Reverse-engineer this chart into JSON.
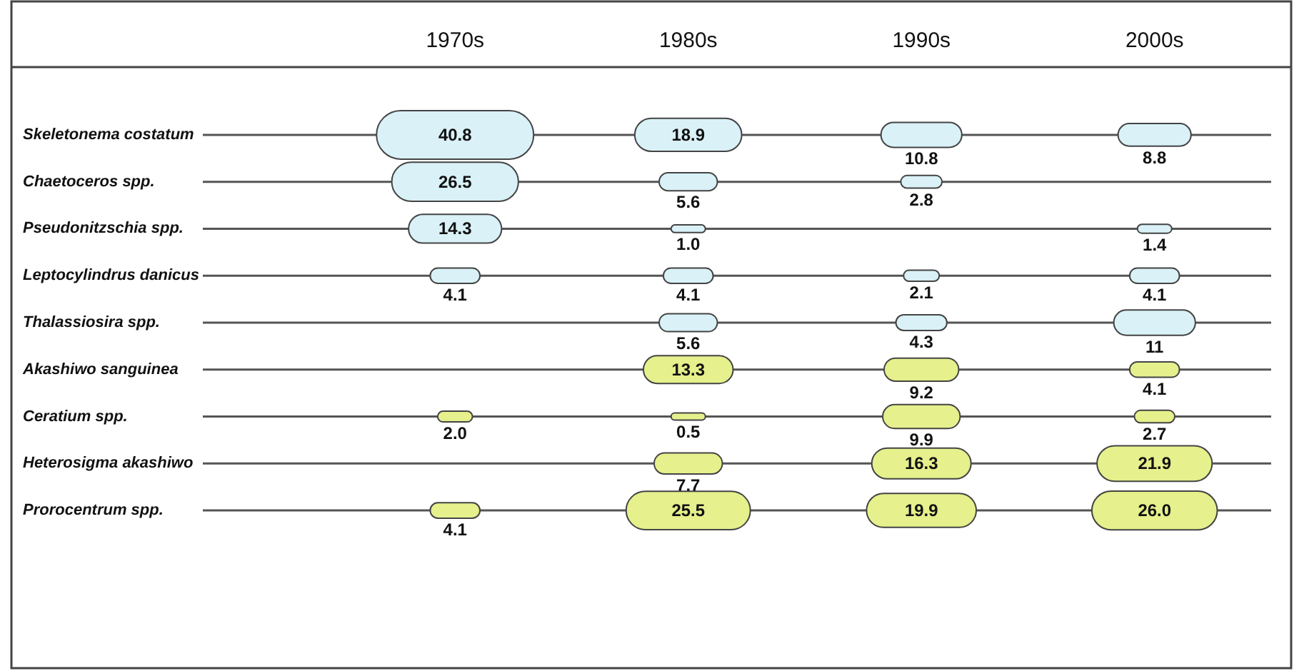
{
  "chart_data": {
    "type": "heatmap",
    "categories": [
      "1970s",
      "1980s",
      "1990s",
      "2000s"
    ],
    "y_categories": [
      "Skeletonema costatum",
      "Chaetoceros spp.",
      "Pseudonitzschia spp.",
      "Leptocylindrus danicus",
      "Thalassiosira spp.",
      "Akashiwo sanguinea",
      "Ceratium spp.",
      "Heterosigma akashiwo",
      "Prorocentrum spp."
    ],
    "cells": [
      [
        40.8,
        18.9,
        10.8,
        8.8
      ],
      [
        26.5,
        5.6,
        2.8,
        null
      ],
      [
        14.3,
        1.0,
        null,
        1.4
      ],
      [
        4.1,
        4.1,
        2.1,
        4.1
      ],
      [
        null,
        5.6,
        4.3,
        11
      ],
      [
        null,
        13.3,
        9.2,
        4.1
      ],
      [
        2.0,
        0.5,
        9.9,
        2.7
      ],
      [
        null,
        7.7,
        16.3,
        21.9
      ],
      [
        4.1,
        25.5,
        19.9,
        26.0
      ]
    ],
    "cell_labels": [
      [
        "40.8",
        "18.9",
        "10.8",
        "8.8"
      ],
      [
        "26.5",
        "5.6",
        "2.8",
        null
      ],
      [
        "14.3",
        "1.0",
        null,
        "1.4"
      ],
      [
        "4.1",
        "4.1",
        "2.1",
        "4.1"
      ],
      [
        null,
        "5.6",
        "4.3",
        "11"
      ],
      [
        null,
        "13.3",
        "9.2",
        "4.1"
      ],
      [
        "2.0",
        "0.5",
        "9.9",
        "2.7"
      ],
      [
        null,
        "7.7",
        "16.3",
        "21.9"
      ],
      [
        "4.1",
        "25.5",
        "19.9",
        "26.0"
      ]
    ],
    "colors": [
      [
        "#d9f1f7",
        "#d9f1f7",
        "#d9f1f7",
        "#d9f1f7"
      ],
      [
        "#d9f1f7",
        "#d9f1f7",
        "#d9f1f7",
        null
      ],
      [
        "#d9f1f7",
        "#d9f1f7",
        null,
        "#d9f1f7"
      ],
      [
        "#d9f1f7",
        "#d9f1f7",
        "#d9f1f7",
        "#d9f1f7"
      ],
      [
        null,
        "#d9f1f7",
        "#d9f1f7",
        "#d9f1f7"
      ],
      [
        null,
        "#e6f08c",
        "#e6f08c",
        "#e6f08c"
      ],
      [
        "#e6f08c",
        "#e6f08c",
        "#e6f08c",
        "#e6f08c"
      ],
      [
        null,
        "#e6f08c",
        "#e6f08c",
        "#e6f08c"
      ],
      [
        "#e6f08c",
        "#e6f08c",
        "#e6f08c",
        "#e6f08c"
      ]
    ],
    "grid": "y"
  }
}
